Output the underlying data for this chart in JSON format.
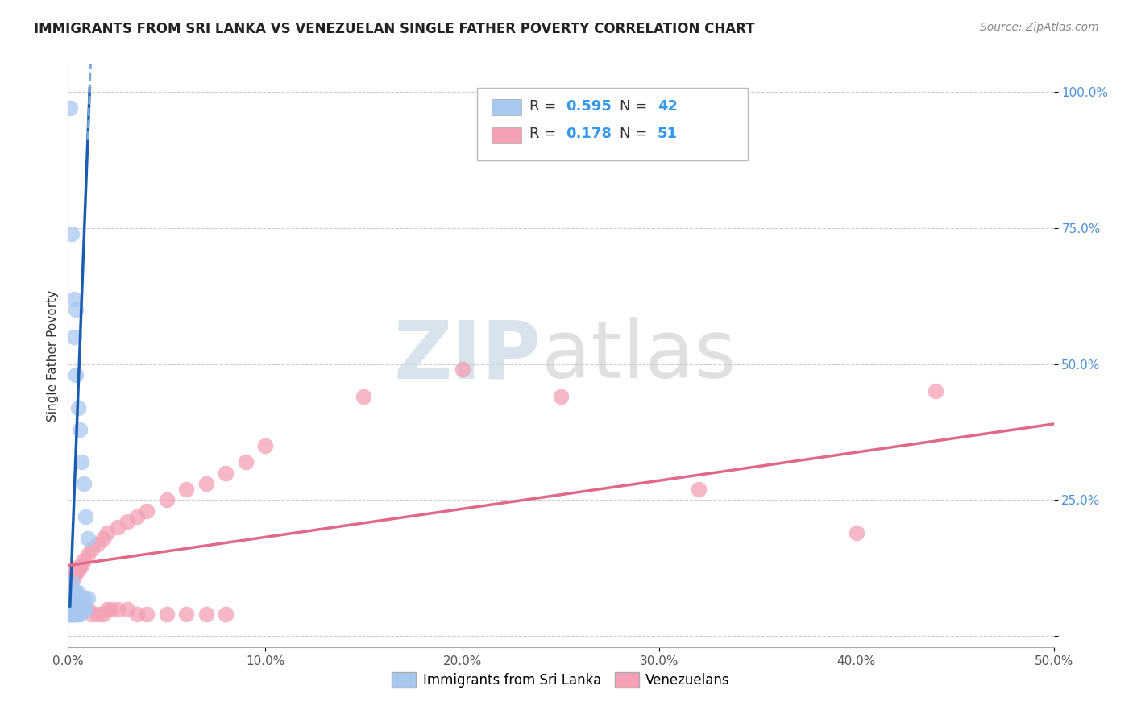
{
  "title": "IMMIGRANTS FROM SRI LANKA VS VENEZUELAN SINGLE FATHER POVERTY CORRELATION CHART",
  "source": "Source: ZipAtlas.com",
  "ylabel": "Single Father Poverty",
  "xlim": [
    0.0,
    0.5
  ],
  "ylim": [
    -0.02,
    1.05
  ],
  "x_tick_vals": [
    0.0,
    0.1,
    0.2,
    0.3,
    0.4,
    0.5
  ],
  "x_tick_labels": [
    "0.0%",
    "10.0%",
    "20.0%",
    "30.0%",
    "40.0%",
    "50.0%"
  ],
  "y_tick_vals": [
    0.0,
    0.25,
    0.5,
    0.75,
    1.0
  ],
  "y_tick_labels": [
    "",
    "25.0%",
    "50.0%",
    "75.0%",
    "100.0%"
  ],
  "sri_lanka_color": "#a8c8f0",
  "sri_lanka_edge_color": "#7aaad8",
  "venezuelan_color": "#f4a0b5",
  "venezuelan_edge_color": "#e07090",
  "sri_lanka_line_color": "#1a5cb0",
  "sri_lanka_dash_color": "#7aaad8",
  "venezuelan_line_color": "#e06888",
  "sri_lanka_x": [
    0.001,
    0.001,
    0.001,
    0.001,
    0.001,
    0.002,
    0.002,
    0.002,
    0.002,
    0.002,
    0.002,
    0.003,
    0.003,
    0.003,
    0.003,
    0.004,
    0.004,
    0.004,
    0.005,
    0.005,
    0.005,
    0.006,
    0.006,
    0.007,
    0.007,
    0.008,
    0.008,
    0.009,
    0.01,
    0.001,
    0.002,
    0.003,
    0.004,
    0.003,
    0.004,
    0.005,
    0.006,
    0.007,
    0.008,
    0.009,
    0.01
  ],
  "sri_lanka_y": [
    0.04,
    0.05,
    0.06,
    0.07,
    0.08,
    0.04,
    0.05,
    0.06,
    0.07,
    0.08,
    0.1,
    0.04,
    0.05,
    0.06,
    0.08,
    0.04,
    0.06,
    0.08,
    0.04,
    0.06,
    0.08,
    0.04,
    0.06,
    0.05,
    0.07,
    0.05,
    0.07,
    0.05,
    0.07,
    0.97,
    0.74,
    0.62,
    0.6,
    0.55,
    0.48,
    0.42,
    0.38,
    0.32,
    0.28,
    0.22,
    0.18
  ],
  "venezuelan_x": [
    0.001,
    0.002,
    0.003,
    0.004,
    0.005,
    0.006,
    0.007,
    0.008,
    0.009,
    0.01,
    0.012,
    0.015,
    0.018,
    0.02,
    0.022,
    0.025,
    0.03,
    0.035,
    0.04,
    0.05,
    0.06,
    0.07,
    0.08,
    0.001,
    0.002,
    0.003,
    0.004,
    0.005,
    0.006,
    0.007,
    0.008,
    0.01,
    0.012,
    0.015,
    0.018,
    0.02,
    0.025,
    0.03,
    0.035,
    0.04,
    0.05,
    0.06,
    0.07,
    0.08,
    0.09,
    0.1,
    0.15,
    0.2,
    0.25,
    0.32,
    0.4,
    0.44
  ],
  "venezuelan_y": [
    0.04,
    0.04,
    0.04,
    0.05,
    0.05,
    0.05,
    0.05,
    0.05,
    0.05,
    0.05,
    0.04,
    0.04,
    0.04,
    0.05,
    0.05,
    0.05,
    0.05,
    0.04,
    0.04,
    0.04,
    0.04,
    0.04,
    0.04,
    0.1,
    0.1,
    0.11,
    0.12,
    0.12,
    0.13,
    0.13,
    0.14,
    0.15,
    0.16,
    0.17,
    0.18,
    0.19,
    0.2,
    0.21,
    0.22,
    0.23,
    0.25,
    0.27,
    0.28,
    0.3,
    0.32,
    0.35,
    0.44,
    0.49,
    0.44,
    0.27,
    0.19,
    0.45
  ],
  "sri_lanka_slope": 95.0,
  "sri_lanka_intercept": -0.04,
  "venezuelan_slope": 0.52,
  "venezuelan_intercept": 0.13,
  "watermark_zip_color": "#c8d8e8",
  "watermark_atlas_color": "#c8c8c8"
}
